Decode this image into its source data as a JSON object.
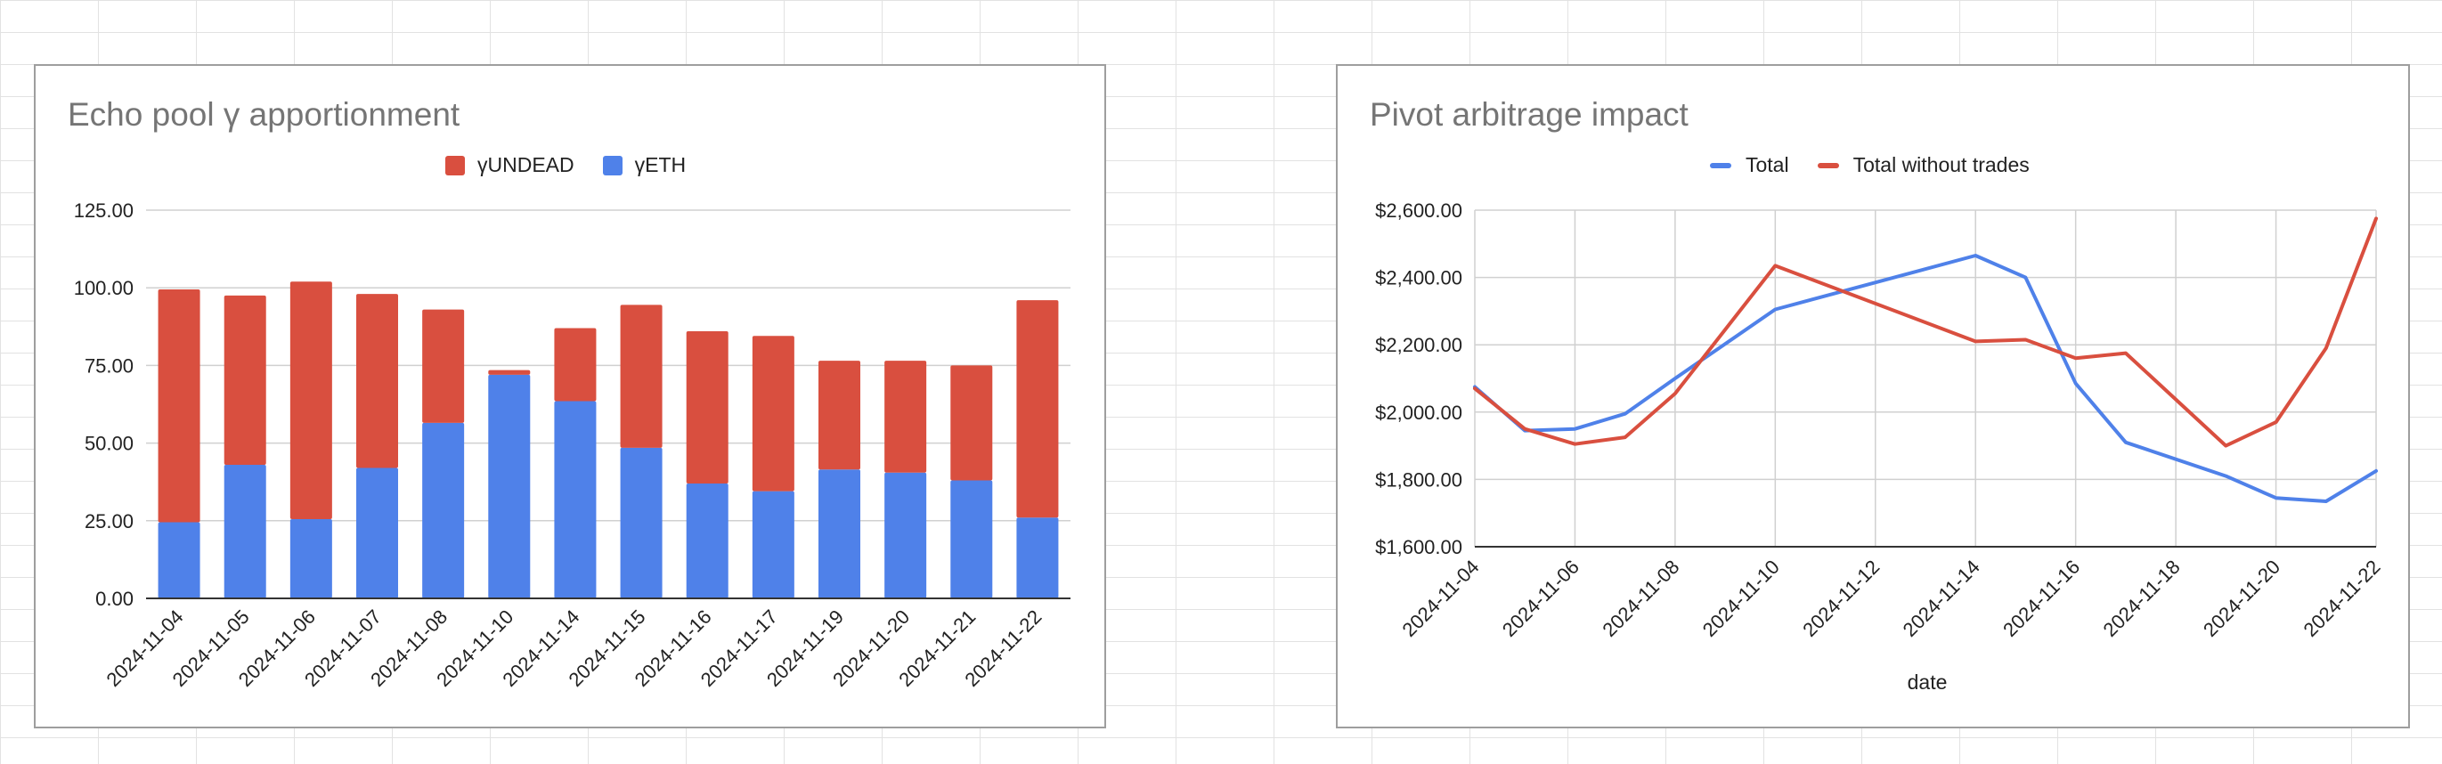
{
  "chart_data": [
    {
      "type": "bar",
      "stacked": true,
      "title": "Echo pool γ apportionment",
      "categories": [
        "2024-11-04",
        "2024-11-05",
        "2024-11-06",
        "2024-11-07",
        "2024-11-08",
        "2024-11-10",
        "2024-11-14",
        "2024-11-15",
        "2024-11-16",
        "2024-11-17",
        "2024-11-19",
        "2024-11-20",
        "2024-11-21",
        "2024-11-22"
      ],
      "series": [
        {
          "name": "γETH",
          "color": "#4f81e9",
          "values": [
            24.5,
            43,
            25.5,
            42,
            56.5,
            72,
            63.5,
            48.5,
            37,
            34.5,
            41.5,
            40.5,
            38,
            26
          ]
        },
        {
          "name": "γUNDEAD",
          "color": "#d94f3f",
          "values": [
            75,
            54.5,
            76.5,
            56,
            36.5,
            1.5,
            23.5,
            46,
            49,
            50,
            35,
            36,
            37,
            70
          ]
        }
      ],
      "legend_order": [
        "γUNDEAD",
        "γETH"
      ],
      "yticks": [
        "0.00",
        "25.00",
        "50.00",
        "75.00",
        "100.00",
        "125.00"
      ],
      "ylim": [
        0,
        125
      ],
      "xlabel": "",
      "ylabel": "",
      "legend_position": "top",
      "grid": true
    },
    {
      "type": "line",
      "title": "Pivot arbitrage impact",
      "xlabel": "date",
      "ylabel": "",
      "x": [
        "2024-11-04",
        "2024-11-05",
        "2024-11-06",
        "2024-11-07",
        "2024-11-08",
        "2024-11-10",
        "2024-11-14",
        "2024-11-15",
        "2024-11-16",
        "2024-11-17",
        "2024-11-19",
        "2024-11-20",
        "2024-11-21",
        "2024-11-22"
      ],
      "xticks": [
        "2024-11-04",
        "2024-11-06",
        "2024-11-08",
        "2024-11-10",
        "2024-11-12",
        "2024-11-14",
        "2024-11-16",
        "2024-11-18",
        "2024-11-20",
        "2024-11-22"
      ],
      "x_range": [
        "2024-11-04",
        "2024-11-22"
      ],
      "series": [
        {
          "name": "Total",
          "color": "#4f81e9",
          "values": [
            2075,
            1945,
            1950,
            1995,
            2100,
            2305,
            2465,
            2400,
            2085,
            1910,
            1810,
            1745,
            1735,
            1825
          ]
        },
        {
          "name": "Total without trades",
          "color": "#d94f3f",
          "values": [
            2070,
            1950,
            1905,
            1925,
            2055,
            2435,
            2210,
            2215,
            2160,
            2175,
            1900,
            1970,
            2190,
            2575
          ]
        }
      ],
      "yticks": [
        "$1,600.00",
        "$1,800.00",
        "$2,000.00",
        "$2,200.00",
        "$2,400.00",
        "$2,600.00"
      ],
      "ylim": [
        1600,
        2600
      ],
      "legend_position": "top",
      "grid": true
    }
  ]
}
